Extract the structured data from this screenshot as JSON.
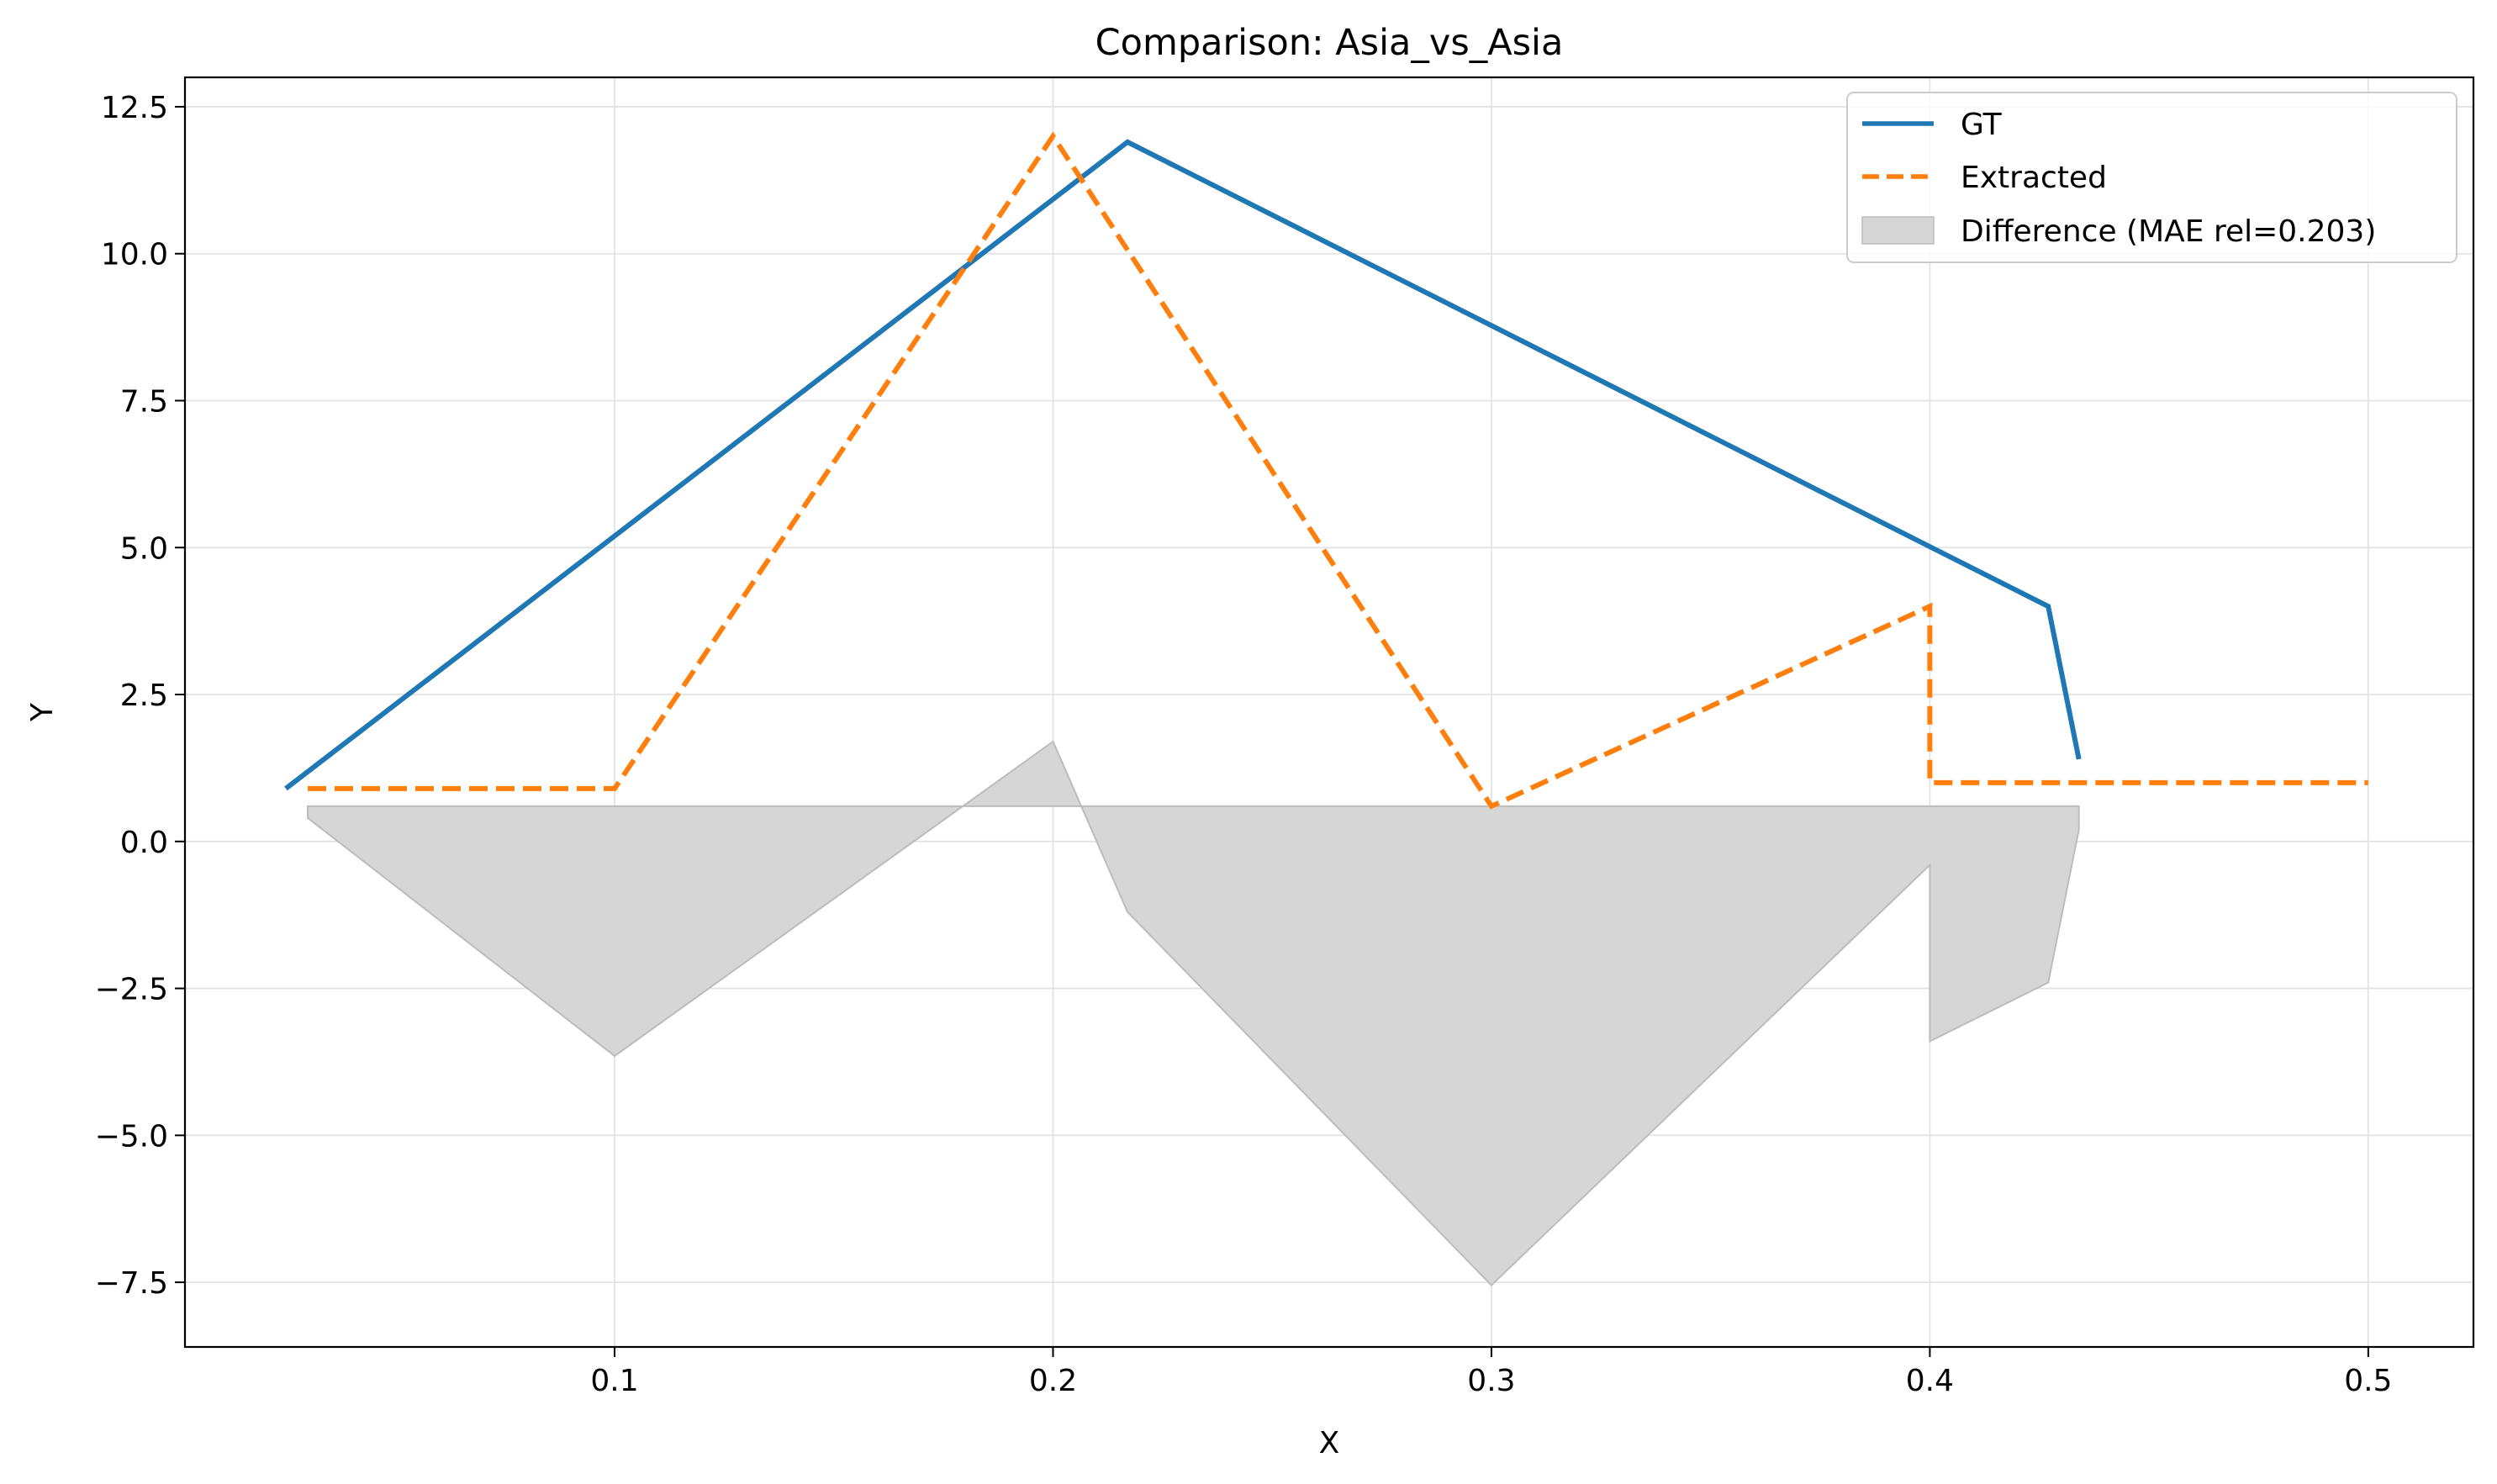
{
  "chart_data": {
    "type": "line",
    "title": "Comparison: Asia_vs_Asia",
    "xlabel": "X",
    "ylabel": "Y",
    "xlim": [
      0.002,
      0.524
    ],
    "ylim": [
      -8.6,
      13.0
    ],
    "xticks": [
      0.1,
      0.2,
      0.3,
      0.4,
      0.5
    ],
    "xtick_labels": [
      "0.1",
      "0.2",
      "0.3",
      "0.4",
      "0.5"
    ],
    "yticks": [
      -7.5,
      -5.0,
      -2.5,
      0.0,
      2.5,
      5.0,
      7.5,
      10.0,
      12.5
    ],
    "ytick_labels": [
      "−7.5",
      "−5.0",
      "−2.5",
      "0.0",
      "2.5",
      "5.0",
      "7.5",
      "10.0",
      "12.5"
    ],
    "grid": true,
    "legend_position": "top-right",
    "series": [
      {
        "name": "GT",
        "style": "solid",
        "color": "#1f77b4",
        "x": [
          0.025,
          0.217,
          0.427,
          0.434
        ],
        "y": [
          0.9,
          11.9,
          4.0,
          1.4
        ]
      },
      {
        "name": "Extracted",
        "style": "dashed",
        "color": "#ff7f0e",
        "x": [
          0.03,
          0.1,
          0.2,
          0.3,
          0.4,
          0.4,
          0.5
        ],
        "y": [
          0.9,
          0.9,
          12.0,
          0.6,
          4.0,
          1.0,
          1.0
        ]
      }
    ],
    "difference": {
      "name": "Difference (MAE rel=0.203)",
      "color": "#d6d6d6",
      "edge_color": "#bcbcbc",
      "baseline": 0.6,
      "x": [
        0.03,
        0.1,
        0.2,
        0.217,
        0.3,
        0.4,
        0.4,
        0.427,
        0.434
      ],
      "y": [
        0.4,
        -3.65,
        1.7,
        -1.2,
        -7.55,
        -0.4,
        -3.4,
        -2.4,
        0.2
      ]
    }
  }
}
